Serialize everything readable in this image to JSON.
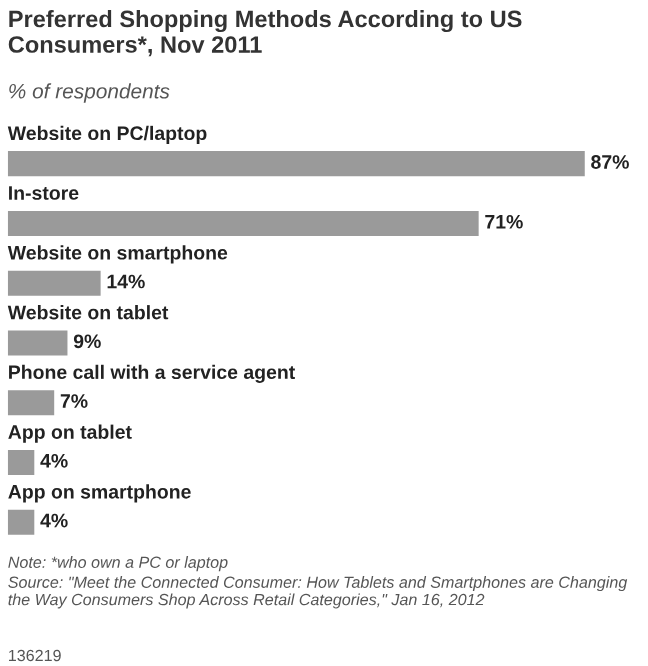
{
  "chart_data": {
    "type": "bar",
    "orientation": "horizontal",
    "title": "Preferred Shopping Methods According to US Consumers*, Nov 2011",
    "subtitle": "% of respondents",
    "categories": [
      "Website on PC/laptop",
      "In-store",
      "Website on smartphone",
      "Website on tablet",
      "Phone call with a service agent",
      "App on tablet",
      "App on smartphone"
    ],
    "values": [
      87,
      71,
      14,
      9,
      7,
      4,
      4
    ],
    "value_labels": [
      "87%",
      "71%",
      "14%",
      "9%",
      "7%",
      "4%",
      "4%"
    ],
    "color": "#9a9a9a",
    "annotations": [
      "Note: *who own a PC or laptop",
      "Source: \"Meet the Connected Consumer: How Tablets and Smartphones are Changing the Way Consumers Shop Across Retail Categories,\" Jan 16, 2012",
      "136219"
    ]
  }
}
